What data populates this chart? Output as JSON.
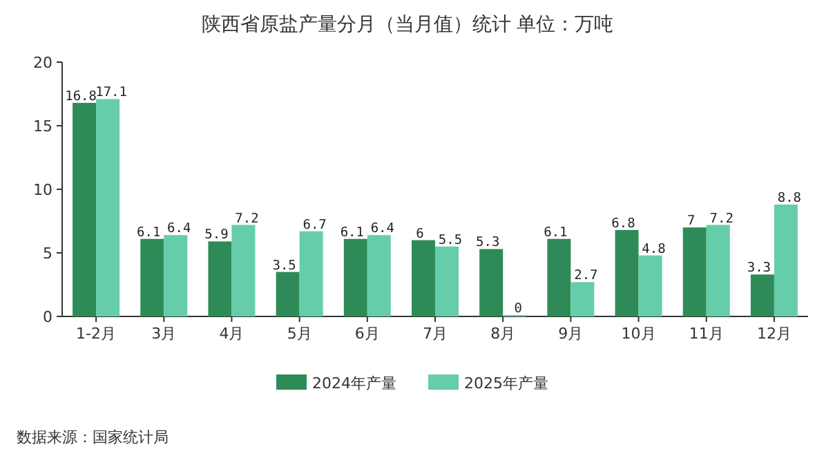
{
  "chart_data": {
    "type": "bar",
    "title": "陕西省原盐产量分月（当月值）统计  单位：万吨",
    "categories": [
      "1-2月",
      "3月",
      "4月",
      "5月",
      "6月",
      "7月",
      "8月",
      "9月",
      "10月",
      "11月",
      "12月"
    ],
    "series": [
      {
        "name": "2024年产量",
        "color": "#2e8b57",
        "values": [
          16.8,
          6.1,
          5.9,
          3.5,
          6.1,
          6,
          5.3,
          6.1,
          6.8,
          7,
          3.3
        ]
      },
      {
        "name": "2025年产量",
        "color": "#66cdaa",
        "values": [
          17.1,
          6.4,
          7.2,
          6.7,
          6.4,
          5.5,
          0,
          2.7,
          4.8,
          7.2,
          8.8
        ]
      }
    ],
    "ylim": [
      0,
      20
    ],
    "yticks": [
      0,
      5,
      10,
      15,
      20
    ],
    "data_labels": true,
    "legend": "bottom",
    "annotations": [
      "数据来源：国家统计局"
    ]
  }
}
